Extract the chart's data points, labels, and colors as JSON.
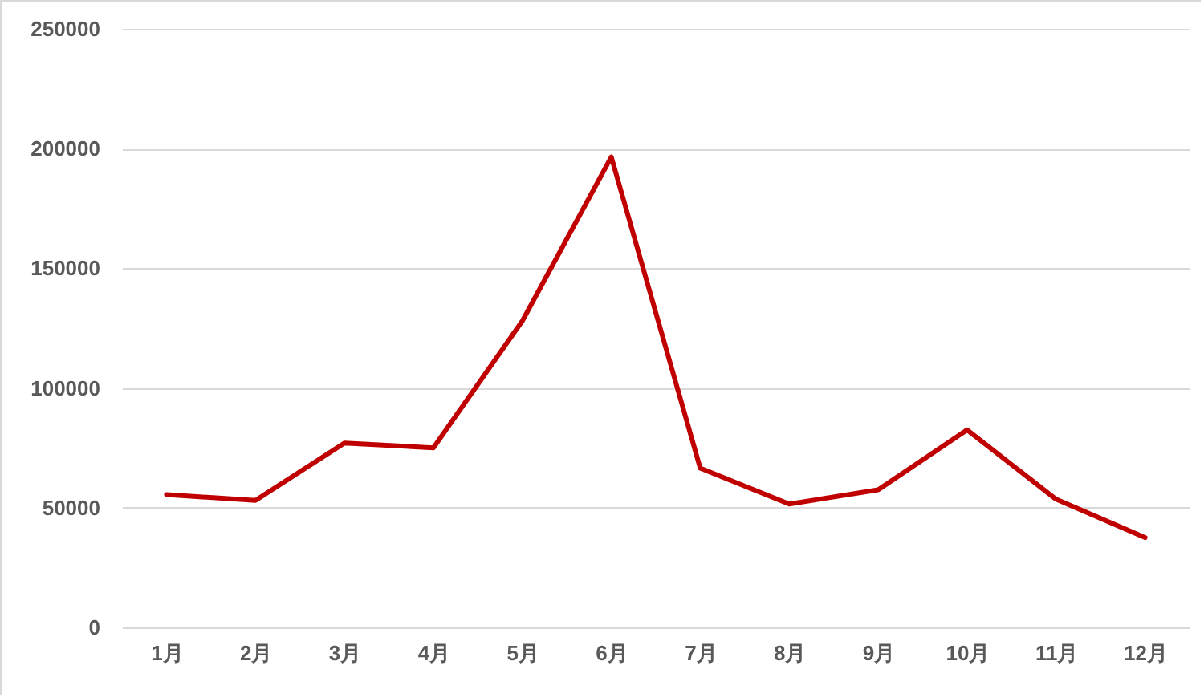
{
  "chart_data": {
    "type": "line",
    "categories": [
      "1月",
      "2月",
      "3月",
      "4月",
      "5月",
      "6月",
      "7月",
      "8月",
      "9月",
      "10月",
      "11月",
      "12月"
    ],
    "series": [
      {
        "color": "#c00000",
        "values": [
          55500,
          53000,
          77000,
          75000,
          128000,
          196500,
          66500,
          51500,
          57500,
          82500,
          53500,
          37500
        ]
      }
    ],
    "ylim": [
      0,
      250000
    ],
    "yticks": [
      0,
      50000,
      100000,
      150000,
      200000,
      250000
    ],
    "grid": "y",
    "marker": "none",
    "line_style": "solid"
  }
}
